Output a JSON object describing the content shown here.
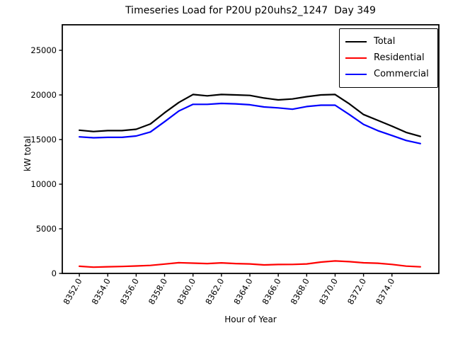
{
  "chart_data": {
    "type": "line",
    "title": "Timeseries Load for P20U p20uhs2_1247  Day 349",
    "xlabel": "Hour of Year",
    "ylabel": "kW total",
    "x": [
      8352,
      8353,
      8354,
      8355,
      8356,
      8357,
      8358,
      8359,
      8360,
      8361,
      8362,
      8363,
      8364,
      8365,
      8366,
      8367,
      8368,
      8369,
      8370,
      8371,
      8372,
      8373,
      8374,
      8375,
      8376
    ],
    "series": [
      {
        "name": "Total",
        "color": "#000000",
        "values": [
          16050,
          15900,
          16000,
          16000,
          16150,
          16750,
          18000,
          19150,
          20050,
          19900,
          20050,
          20000,
          19950,
          19650,
          19450,
          19550,
          19800,
          20000,
          20050,
          19000,
          17800,
          17150,
          16500,
          15800,
          15350
        ]
      },
      {
        "name": "Residential",
        "color": "#ff0000",
        "values": [
          800,
          700,
          750,
          780,
          830,
          900,
          1050,
          1200,
          1150,
          1100,
          1180,
          1100,
          1060,
          950,
          1000,
          1010,
          1060,
          1270,
          1400,
          1320,
          1190,
          1140,
          1010,
          820,
          740
        ]
      },
      {
        "name": "Commercial",
        "color": "#0000ff",
        "values": [
          15300,
          15200,
          15250,
          15250,
          15400,
          15850,
          17000,
          18200,
          18950,
          18950,
          19050,
          19000,
          18900,
          18650,
          18550,
          18400,
          18700,
          18850,
          18850,
          17800,
          16700,
          16000,
          15450,
          14900,
          14550
        ]
      }
    ],
    "x_ticks": [
      8352,
      8354,
      8356,
      8358,
      8360,
      8362,
      8364,
      8366,
      8368,
      8370,
      8372,
      8374
    ],
    "x_tick_labels": [
      "8352.0",
      "8354.0",
      "8356.0",
      "8358.0",
      "8360.0",
      "8362.0",
      "8364.0",
      "8366.0",
      "8368.0",
      "8370.0",
      "8372.0",
      "8374.0"
    ],
    "y_ticks": [
      0,
      5000,
      10000,
      15000,
      20000,
      25000
    ],
    "y_tick_labels": [
      "0",
      "5000",
      "10000",
      "15000",
      "20000",
      "25000"
    ],
    "xlim": [
      8350.8,
      8377.3
    ],
    "ylim": [
      0,
      27860
    ],
    "grid": false,
    "legend_position": "upper right"
  }
}
